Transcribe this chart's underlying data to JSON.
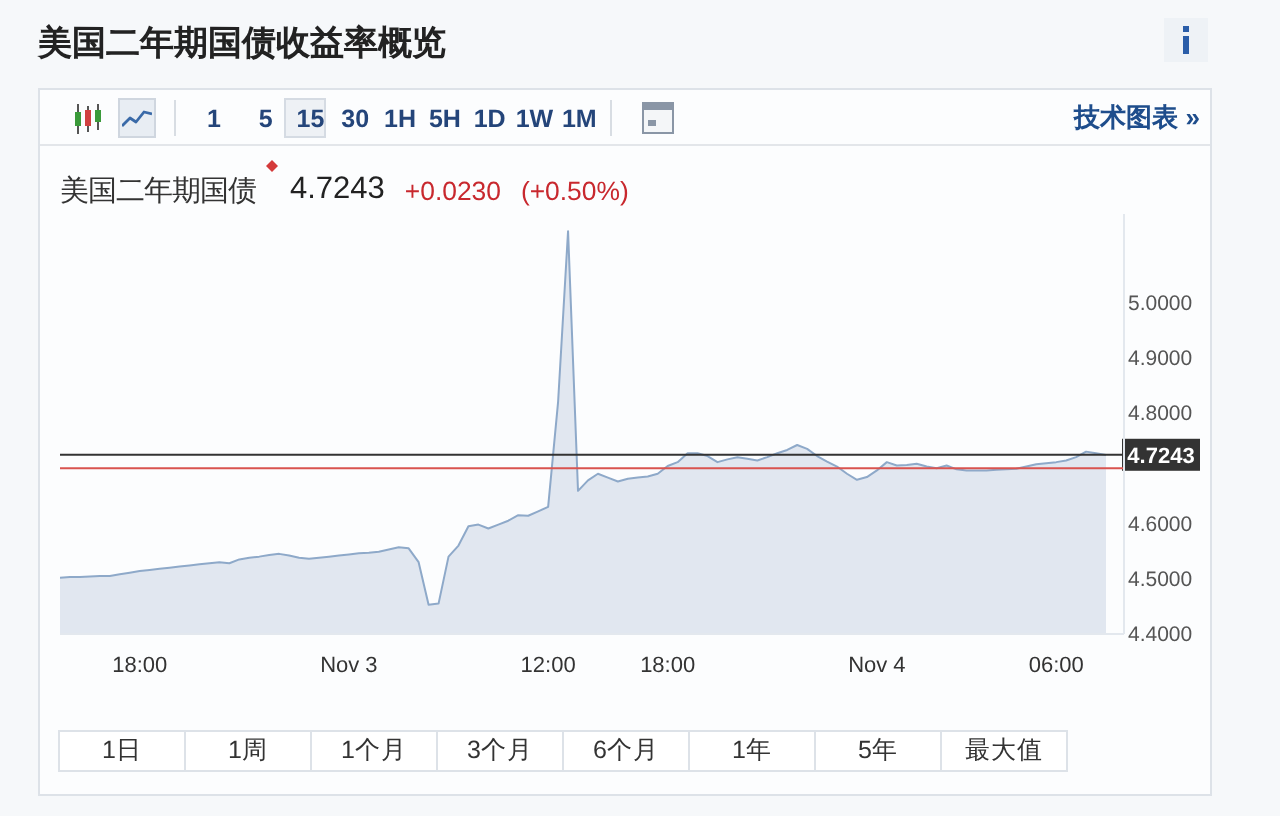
{
  "chart_data": {
    "type": "area",
    "title": "美国二年期国债收益率概览",
    "categories": [
      null,
      null,
      null,
      null,
      null,
      null,
      null,
      null,
      "18:00",
      null,
      null,
      null,
      null,
      null,
      null,
      null,
      null,
      null,
      null,
      null,
      null,
      null,
      null,
      null,
      null,
      null,
      null,
      null,
      null,
      "Nov 3",
      null,
      null,
      null,
      null,
      null,
      null,
      null,
      null,
      null,
      null,
      null,
      null,
      null,
      null,
      null,
      null,
      null,
      null,
      null,
      "12:00",
      null,
      null,
      null,
      null,
      null,
      null,
      null,
      null,
      null,
      null,
      null,
      "18:00",
      null,
      null,
      null,
      null,
      null,
      null,
      null,
      null,
      null,
      null,
      null,
      null,
      null,
      null,
      null,
      null,
      null,
      null,
      null,
      null,
      "Nov 4",
      null,
      null,
      null,
      null,
      null,
      null,
      null,
      null,
      null,
      null,
      null,
      null,
      null,
      null,
      null,
      null,
      null,
      "06:00",
      null,
      null,
      null,
      null,
      null
    ],
    "values": [
      4.502,
      4.503,
      4.503,
      4.504,
      4.505,
      4.505,
      4.508,
      4.511,
      4.514,
      4.516,
      4.518,
      4.52,
      4.522,
      4.524,
      4.526,
      4.528,
      4.53,
      4.528,
      4.535,
      4.538,
      4.54,
      4.543,
      4.545,
      4.542,
      4.538,
      4.536,
      4.538,
      4.54,
      4.542,
      4.544,
      4.546,
      4.547,
      4.549,
      4.553,
      4.557,
      4.555,
      4.53,
      4.453,
      4.455,
      4.54,
      4.56,
      4.595,
      4.598,
      4.591,
      4.598,
      4.605,
      4.615,
      4.614,
      4.622,
      4.63,
      4.82,
      5.129,
      4.659,
      4.678,
      4.69,
      4.683,
      4.676,
      4.681,
      4.683,
      4.685,
      4.69,
      4.704,
      4.711,
      4.727,
      4.727,
      4.722,
      4.711,
      4.716,
      4.72,
      4.717,
      4.714,
      4.72,
      4.727,
      4.733,
      4.742,
      4.735,
      4.722,
      4.712,
      4.703,
      4.69,
      4.679,
      4.684,
      4.696,
      4.711,
      4.705,
      4.706,
      4.708,
      4.703,
      4.7,
      4.705,
      4.698,
      4.696,
      4.696,
      4.696,
      4.697,
      4.698,
      4.699,
      4.703,
      4.707,
      4.709,
      4.711,
      4.714,
      4.72,
      4.73,
      4.727,
      4.724
    ],
    "color": "#8ea9c9",
    "ylim": [
      4.4,
      5.16
    ],
    "yticks": [
      {
        "value": 4.4,
        "label": "4.4000"
      },
      {
        "value": 4.5,
        "label": "4.5000"
      },
      {
        "value": 4.6,
        "label": "4.6000"
      },
      {
        "value": 4.8,
        "label": "4.8000"
      },
      {
        "value": 4.9,
        "label": "4.9000"
      },
      {
        "value": 5.0,
        "label": "5.0000"
      }
    ],
    "ref_lines": [
      {
        "axis": "y",
        "value": 4.7243,
        "label": "4.7243",
        "color": "#333333"
      },
      {
        "axis": "y",
        "value": 4.7,
        "color": "#d9534f"
      }
    ],
    "annotations": [
      "美国二年期国债",
      "4.7243",
      "+0.0230",
      "(+0.50%)",
      "1 5 15 30 1H 5H 1D 1W 1M",
      "技术图表 »",
      "1日",
      "1周",
      "1个月",
      "3个月",
      "6个月",
      "1年",
      "5年",
      "最大值"
    ]
  }
}
